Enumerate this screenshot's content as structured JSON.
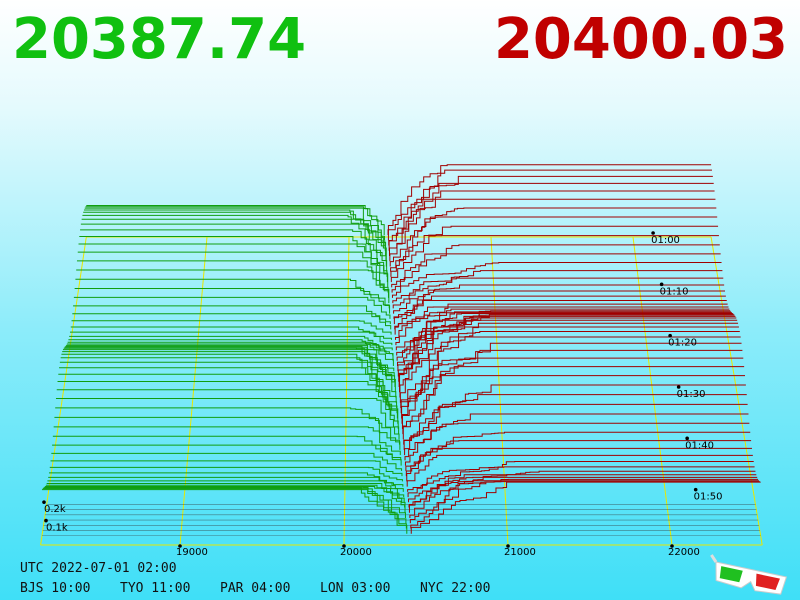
{
  "header": {
    "bid_price": "20387.74",
    "ask_price": "20400.03"
  },
  "chart_data": {
    "type": "depth3d",
    "xlim": [
      18150,
      22550
    ],
    "xticks": [
      19000,
      20000,
      21000,
      22000
    ],
    "time_ticks": [
      "01:00",
      "01:10",
      "01:20",
      "01:30",
      "01:40",
      "01:50"
    ],
    "depth_ticks": [
      {
        "value": 200,
        "label": "0.2k"
      },
      {
        "value": 100,
        "label": "0.1k"
      }
    ],
    "bid_color": "#109e10",
    "ask_color": "#a00000",
    "grid_color": "#e8e800"
  },
  "footer": {
    "utc": "UTC 2022-07-01 02:00",
    "clocks": [
      "BJS 10:00",
      "TYO 11:00",
      "PAR 04:00",
      "LON 03:00",
      "NYC 22:00"
    ]
  }
}
